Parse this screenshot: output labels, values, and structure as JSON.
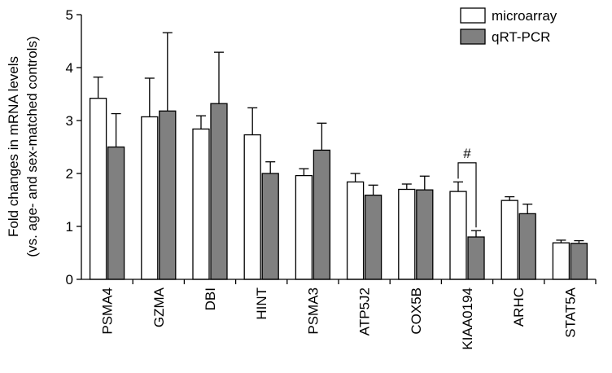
{
  "chart_data": {
    "type": "bar",
    "ylabel_line1": "Fold changes in mRNA levels",
    "ylabel_line2": "(vs. age- and sex-matched controls)",
    "ylim": [
      0,
      5
    ],
    "yticks": [
      0,
      1,
      2,
      3,
      4,
      5
    ],
    "grid": false,
    "legend_position": "top-right",
    "categories": [
      "PSMA4",
      "GZMA",
      "DBI",
      "HINT",
      "PSMA3",
      "ATP5J2",
      "COX5B",
      "KIAA0194",
      "ARHC",
      "STAT5A"
    ],
    "series": [
      {
        "name": "microarray",
        "color": "#ffffff",
        "values": [
          3.42,
          3.07,
          2.84,
          2.73,
          1.96,
          1.84,
          1.7,
          1.66,
          1.49,
          0.69
        ],
        "errors": [
          0.4,
          0.73,
          0.25,
          0.51,
          0.13,
          0.16,
          0.1,
          0.18,
          0.07,
          0.05
        ]
      },
      {
        "name": "qRT-PCR",
        "color": "#808080",
        "values": [
          2.5,
          3.18,
          3.32,
          2.0,
          2.44,
          1.59,
          1.69,
          0.8,
          1.24,
          0.68
        ],
        "errors": [
          0.63,
          1.48,
          0.97,
          0.22,
          0.51,
          0.19,
          0.26,
          0.12,
          0.18,
          0.05
        ]
      }
    ],
    "annotation": {
      "text": "#",
      "category_index": 7
    }
  }
}
